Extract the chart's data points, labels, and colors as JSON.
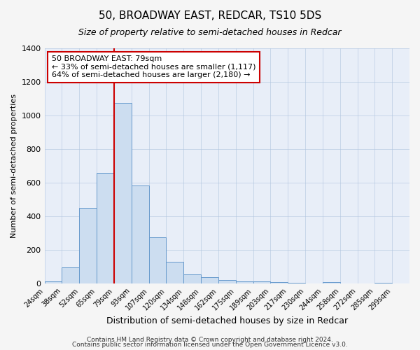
{
  "title": "50, BROADWAY EAST, REDCAR, TS10 5DS",
  "subtitle": "Size of property relative to semi-detached houses in Redcar",
  "xlabel": "Distribution of semi-detached houses by size in Redcar",
  "ylabel": "Number of semi-detached properties",
  "bin_labels": [
    "24sqm",
    "38sqm",
    "52sqm",
    "65sqm",
    "79sqm",
    "93sqm",
    "107sqm",
    "120sqm",
    "134sqm",
    "148sqm",
    "162sqm",
    "175sqm",
    "189sqm",
    "203sqm",
    "217sqm",
    "230sqm",
    "244sqm",
    "258sqm",
    "272sqm",
    "285sqm",
    "299sqm"
  ],
  "bar_values": [
    15,
    95,
    450,
    660,
    1075,
    585,
    275,
    130,
    55,
    40,
    20,
    15,
    15,
    10,
    5,
    0,
    10,
    0,
    0,
    5,
    0
  ],
  "bar_color": "#ccddf0",
  "bar_edge_color": "#6699cc",
  "vline_x": 4.5,
  "vline_color": "#cc0000",
  "annotation_title": "50 BROADWAY EAST: 79sqm",
  "annotation_line1": "← 33% of semi-detached houses are smaller (1,117)",
  "annotation_line2": "64% of semi-detached houses are larger (2,180) →",
  "annotation_box_color": "#ffffff",
  "annotation_box_edge": "#cc0000",
  "ylim": [
    0,
    1400
  ],
  "yticks": [
    0,
    200,
    400,
    600,
    800,
    1000,
    1200,
    1400
  ],
  "grid_color": "#b0c4de",
  "background_color": "#e8eef8",
  "fig_color": "#f5f5f5",
  "title_fontsize": 11,
  "subtitle_fontsize": 9,
  "ylabel_fontsize": 8,
  "xlabel_fontsize": 9,
  "footer1": "Contains HM Land Registry data © Crown copyright and database right 2024.",
  "footer2": "Contains public sector information licensed under the Open Government Licence v3.0."
}
